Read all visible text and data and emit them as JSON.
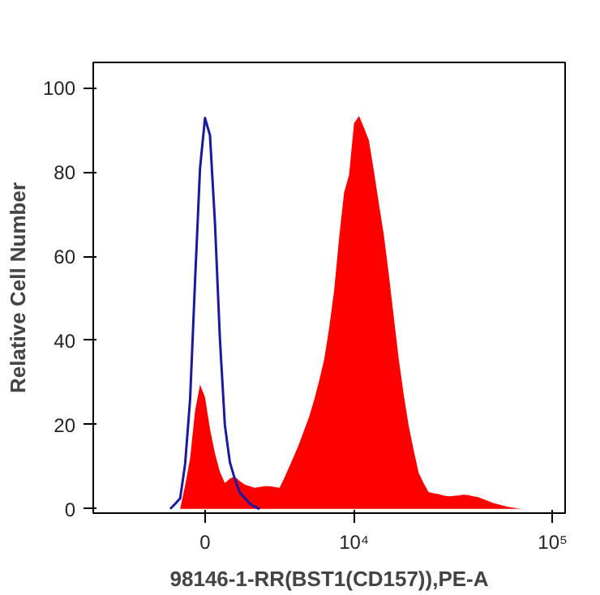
{
  "chart_data": {
    "type": "area",
    "xlabel": "98146-1-RR(BST1(CD157)),PE-A",
    "ylabel": "Relative Cell Number",
    "categories": [
      null,
      null,
      null,
      null,
      null,
      null,
      null,
      null,
      null,
      null,
      null,
      null,
      null,
      null,
      null,
      null,
      null,
      null,
      null,
      null,
      null,
      null,
      "0",
      null,
      null,
      null,
      null,
      null,
      null,
      null,
      null,
      null,
      null,
      null,
      null,
      null,
      null,
      null,
      null,
      null,
      null,
      null,
      null,
      null,
      null,
      null,
      null,
      null,
      null,
      null,
      null,
      null,
      "10⁴",
      null,
      null,
      null,
      null,
      null,
      null,
      null,
      null,
      null,
      null,
      null,
      null,
      null,
      null,
      null,
      null,
      null,
      null,
      null,
      null,
      null,
      null,
      null,
      null,
      null,
      null,
      null,
      null,
      null,
      null,
      null,
      null,
      null,
      null,
      null,
      null,
      null,
      null,
      null,
      "10⁵",
      null,
      null
    ],
    "ylim": [
      -1,
      106
    ],
    "yticks": [
      0,
      20,
      40,
      60,
      80,
      100
    ],
    "grid": false,
    "series": [
      {
        "color": "#ff0000",
        "values": [
          0,
          0,
          0,
          0,
          0,
          0,
          0,
          0,
          0,
          0,
          0,
          0,
          0,
          0,
          0,
          0,
          0,
          0,
          5.6,
          12,
          23.3,
          29.5,
          26.5,
          19,
          13.2,
          8.8,
          6.1,
          7.2,
          7.7,
          6.6,
          5.8,
          5.4,
          5,
          5.2,
          5.4,
          5.4,
          5.2,
          5,
          7.4,
          10.1,
          12.8,
          15.6,
          18.8,
          22,
          26,
          30.5,
          35.5,
          43,
          51.9,
          64.4,
          75.1,
          79.3,
          91.5,
          93.3,
          90.5,
          87.5,
          80.2,
          72.5,
          65.1,
          55.7,
          45.6,
          35.6,
          27.2,
          19.8,
          14,
          8.6,
          6.1,
          4,
          3.7,
          3.5,
          3.2,
          3,
          3.1,
          3.2,
          3.4,
          3.3,
          3,
          2.8,
          2.3,
          1.9,
          1.4,
          1.1,
          0.8,
          0.5,
          0.3,
          0.1,
          0,
          0,
          0,
          0,
          0,
          0,
          0,
          0,
          0
        ]
      },
      {
        "type": "line",
        "color": "#1a1aa0",
        "values": [
          null,
          null,
          null,
          null,
          null,
          null,
          null,
          null,
          null,
          null,
          null,
          null,
          null,
          null,
          null,
          0,
          1.2,
          2.5,
          10.7,
          26,
          54.2,
          80.9,
          92.8,
          88.7,
          68,
          40.4,
          19.9,
          11.1,
          7.1,
          3.9,
          2.6,
          1.3,
          0.5,
          0,
          null,
          null,
          null,
          null,
          null,
          null,
          null,
          null,
          null,
          null,
          null,
          null,
          null,
          null,
          null,
          null,
          null,
          null,
          null,
          null,
          null,
          null,
          null,
          null,
          null,
          null,
          null,
          null,
          null,
          null,
          null,
          null,
          null,
          null,
          null,
          null,
          null,
          null,
          null,
          null,
          null,
          null,
          null,
          null,
          null,
          null,
          null,
          null,
          null,
          null,
          null,
          null,
          null,
          null,
          null,
          null,
          null,
          null,
          null,
          null,
          null
        ]
      }
    ]
  }
}
